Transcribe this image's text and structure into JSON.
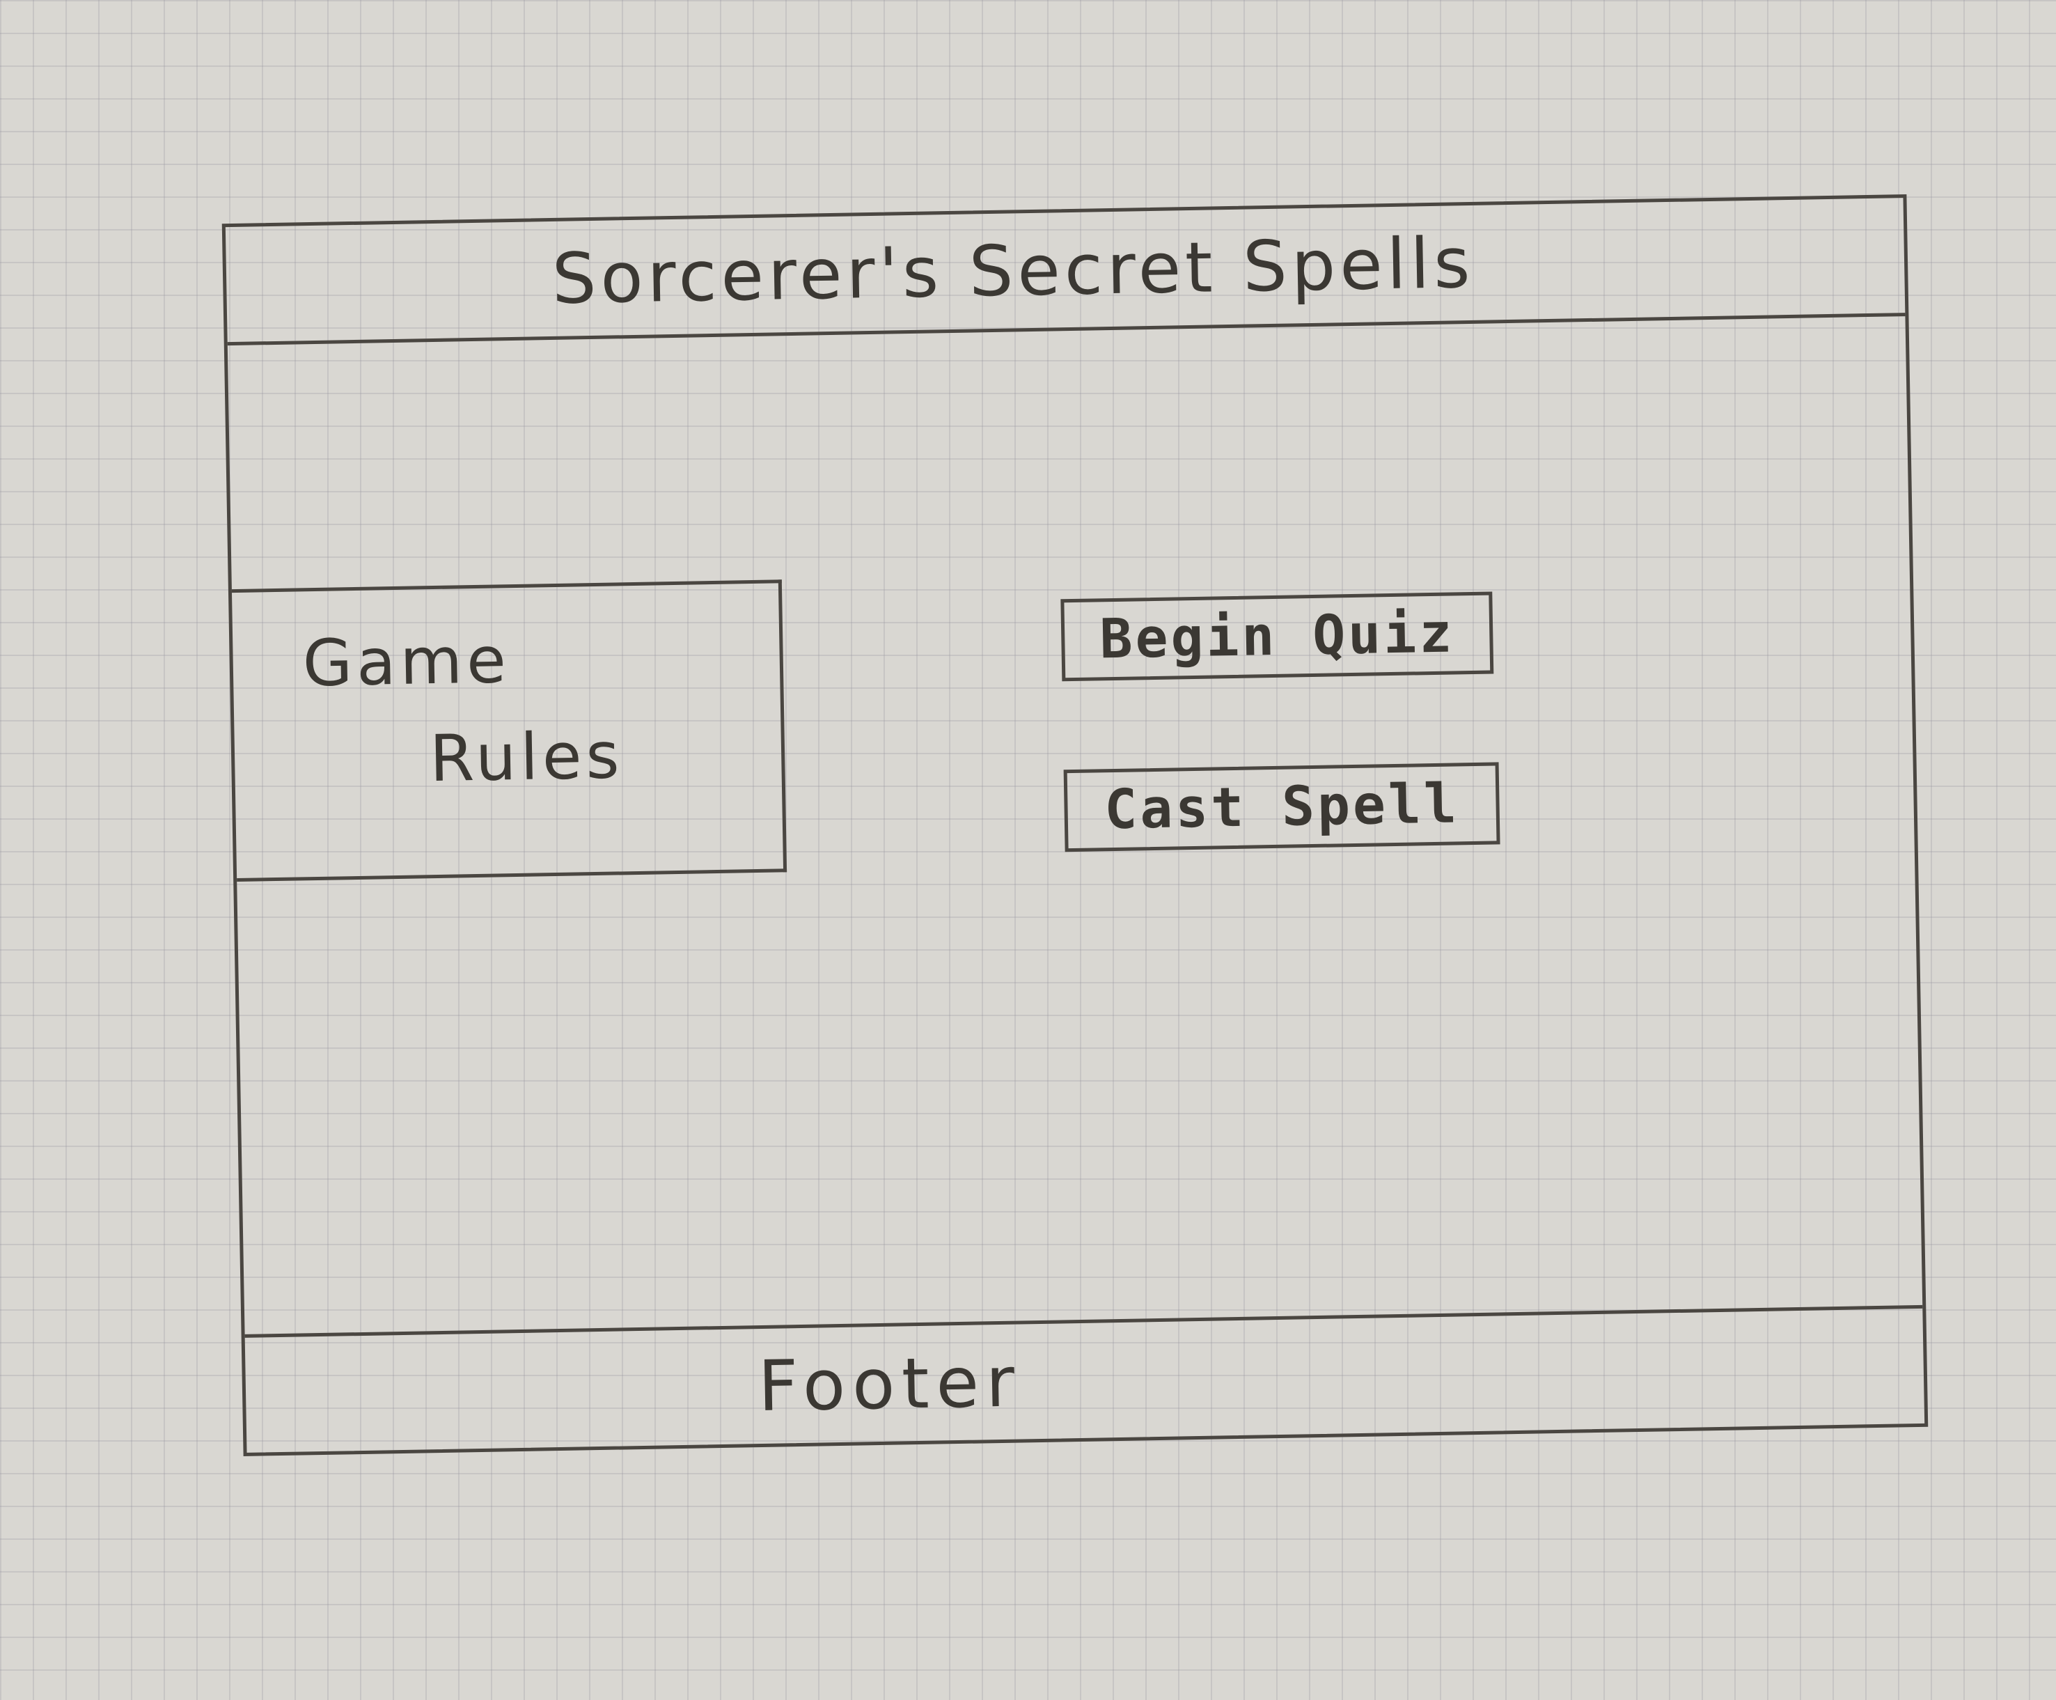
{
  "header": {
    "title": "Sorcerer's Secret Spells"
  },
  "rules": {
    "line1": "Game",
    "line2": "Rules"
  },
  "actions": {
    "begin_quiz_label": "Begin Quiz",
    "cast_spell_label": "Cast Spell"
  },
  "footer": {
    "label": "Footer"
  }
}
